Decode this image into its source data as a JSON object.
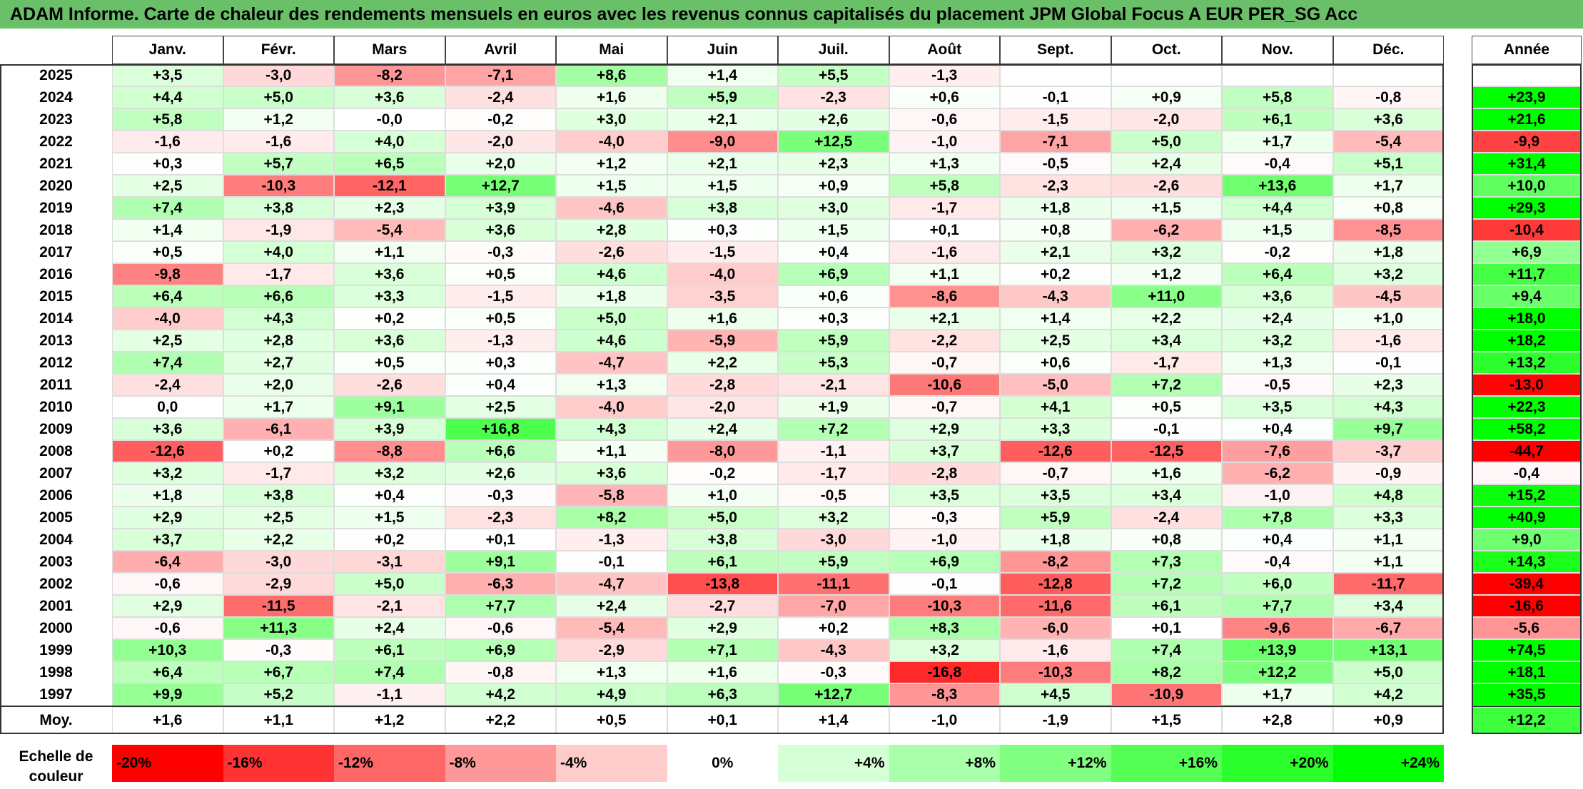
{
  "title": "ADAM Informe. Carte de chaleur des rendements mensuels en euros avec les revenus connus capitalisés du placement JPM Global Focus A EUR PER_SG Acc",
  "chart_data": {
    "type": "heatmap",
    "title": "ADAM Informe. Carte de chaleur des rendements mensuels en euros avec les revenus connus capitalisés du placement JPM Global Focus A EUR PER_SG Acc",
    "columns": [
      "Janv.",
      "Févr.",
      "Mars",
      "Avril",
      "Mai",
      "Juin",
      "Juil.",
      "Août",
      "Sept.",
      "Oct.",
      "Nov.",
      "Déc."
    ],
    "year_header": "Année",
    "rows": [
      {
        "label": "2025",
        "values": [
          "+3,5",
          "-3,0",
          "-8,2",
          "-7,1",
          "+8,6",
          "+1,4",
          "+5,5",
          "-1,3",
          "",
          "",
          "",
          ""
        ],
        "year": ""
      },
      {
        "label": "2024",
        "values": [
          "+4,4",
          "+5,0",
          "+3,6",
          "-2,4",
          "+1,6",
          "+5,9",
          "-2,3",
          "+0,6",
          "-0,1",
          "+0,9",
          "+5,8",
          "-0,8"
        ],
        "year": "+23,9"
      },
      {
        "label": "2023",
        "values": [
          "+5,8",
          "+1,2",
          "-0,0",
          "-0,2",
          "+3,0",
          "+2,1",
          "+2,6",
          "-0,6",
          "-1,5",
          "-2,0",
          "+6,1",
          "+3,6"
        ],
        "year": "+21,6"
      },
      {
        "label": "2022",
        "values": [
          "-1,6",
          "-1,6",
          "+4,0",
          "-2,0",
          "-4,0",
          "-9,0",
          "+12,5",
          "-1,0",
          "-7,1",
          "+5,0",
          "+1,7",
          "-5,4"
        ],
        "year": "-9,9"
      },
      {
        "label": "2021",
        "values": [
          "+0,3",
          "+5,7",
          "+6,5",
          "+2,0",
          "+1,2",
          "+2,1",
          "+2,3",
          "+1,3",
          "-0,5",
          "+2,4",
          "-0,4",
          "+5,1"
        ],
        "year": "+31,4"
      },
      {
        "label": "2020",
        "values": [
          "+2,5",
          "-10,3",
          "-12,1",
          "+12,7",
          "+1,5",
          "+1,5",
          "+0,9",
          "+5,8",
          "-2,3",
          "-2,6",
          "+13,6",
          "+1,7"
        ],
        "year": "+10,0"
      },
      {
        "label": "2019",
        "values": [
          "+7,4",
          "+3,8",
          "+2,3",
          "+3,9",
          "-4,6",
          "+3,8",
          "+3,0",
          "-1,7",
          "+1,8",
          "+1,5",
          "+4,4",
          "+0,8"
        ],
        "year": "+29,3"
      },
      {
        "label": "2018",
        "values": [
          "+1,4",
          "-1,9",
          "-5,4",
          "+3,6",
          "+2,8",
          "+0,3",
          "+1,5",
          "+0,1",
          "+0,8",
          "-6,2",
          "+1,5",
          "-8,5"
        ],
        "year": "-10,4"
      },
      {
        "label": "2017",
        "values": [
          "+0,5",
          "+4,0",
          "+1,1",
          "-0,3",
          "-2,6",
          "-1,5",
          "+0,4",
          "-1,6",
          "+2,1",
          "+3,2",
          "-0,2",
          "+1,8"
        ],
        "year": "+6,9"
      },
      {
        "label": "2016",
        "values": [
          "-9,8",
          "-1,7",
          "+3,6",
          "+0,5",
          "+4,6",
          "-4,0",
          "+6,9",
          "+1,1",
          "+0,2",
          "+1,2",
          "+6,4",
          "+3,2"
        ],
        "year": "+11,7"
      },
      {
        "label": "2015",
        "values": [
          "+6,4",
          "+6,6",
          "+3,3",
          "-1,5",
          "+1,8",
          "-3,5",
          "+0,6",
          "-8,6",
          "-4,3",
          "+11,0",
          "+3,6",
          "-4,5"
        ],
        "year": "+9,4"
      },
      {
        "label": "2014",
        "values": [
          "-4,0",
          "+4,3",
          "+0,2",
          "+0,5",
          "+5,0",
          "+1,6",
          "+0,3",
          "+2,1",
          "+1,4",
          "+2,2",
          "+2,4",
          "+1,0"
        ],
        "year": "+18,0"
      },
      {
        "label": "2013",
        "values": [
          "+2,5",
          "+2,8",
          "+3,6",
          "-1,3",
          "+4,6",
          "-5,9",
          "+5,9",
          "-2,2",
          "+2,5",
          "+3,4",
          "+3,2",
          "-1,6"
        ],
        "year": "+18,2"
      },
      {
        "label": "2012",
        "values": [
          "+7,4",
          "+2,7",
          "+0,5",
          "+0,3",
          "-4,7",
          "+2,2",
          "+5,3",
          "-0,7",
          "+0,6",
          "-1,7",
          "+1,3",
          "-0,1"
        ],
        "year": "+13,2"
      },
      {
        "label": "2011",
        "values": [
          "-2,4",
          "+2,0",
          "-2,6",
          "+0,4",
          "+1,3",
          "-2,8",
          "-2,1",
          "-10,6",
          "-5,0",
          "+7,2",
          "-0,5",
          "+2,3"
        ],
        "year": "-13,0"
      },
      {
        "label": "2010",
        "values": [
          "0,0",
          "+1,7",
          "+9,1",
          "+2,5",
          "-4,0",
          "-2,0",
          "+1,9",
          "-0,7",
          "+4,1",
          "+0,5",
          "+3,5",
          "+4,3"
        ],
        "year": "+22,3"
      },
      {
        "label": "2009",
        "values": [
          "+3,6",
          "-6,1",
          "+3,9",
          "+16,8",
          "+4,3",
          "+2,4",
          "+7,2",
          "+2,9",
          "+3,3",
          "-0,1",
          "+0,4",
          "+9,7"
        ],
        "year": "+58,2"
      },
      {
        "label": "2008",
        "values": [
          "-12,6",
          "+0,2",
          "-8,8",
          "+6,6",
          "+1,1",
          "-8,0",
          "-1,1",
          "+3,7",
          "-12,6",
          "-12,5",
          "-7,6",
          "-3,7"
        ],
        "year": "-44,7"
      },
      {
        "label": "2007",
        "values": [
          "+3,2",
          "-1,7",
          "+3,2",
          "+2,6",
          "+3,6",
          "-0,2",
          "-1,7",
          "-2,8",
          "-0,7",
          "+1,6",
          "-6,2",
          "-0,9"
        ],
        "year": "-0,4"
      },
      {
        "label": "2006",
        "values": [
          "+1,8",
          "+3,8",
          "+0,4",
          "-0,3",
          "-5,8",
          "+1,0",
          "-0,5",
          "+3,5",
          "+3,5",
          "+3,4",
          "-1,0",
          "+4,8"
        ],
        "year": "+15,2"
      },
      {
        "label": "2005",
        "values": [
          "+2,9",
          "+2,5",
          "+1,5",
          "-2,3",
          "+8,2",
          "+5,0",
          "+3,2",
          "-0,3",
          "+5,9",
          "-2,4",
          "+7,8",
          "+3,3"
        ],
        "year": "+40,9"
      },
      {
        "label": "2004",
        "values": [
          "+3,7",
          "+2,2",
          "+0,2",
          "+0,1",
          "-1,3",
          "+3,8",
          "-3,0",
          "-1,0",
          "+1,8",
          "+0,8",
          "+0,4",
          "+1,1"
        ],
        "year": "+9,0"
      },
      {
        "label": "2003",
        "values": [
          "-6,4",
          "-3,0",
          "-3,1",
          "+9,1",
          "-0,1",
          "+6,1",
          "+5,9",
          "+6,9",
          "-8,2",
          "+7,3",
          "-0,4",
          "+1,1"
        ],
        "year": "+14,3"
      },
      {
        "label": "2002",
        "values": [
          "-0,6",
          "-2,9",
          "+5,0",
          "-6,3",
          "-4,7",
          "-13,8",
          "-11,1",
          "-0,1",
          "-12,8",
          "+7,2",
          "+6,0",
          "-11,7"
        ],
        "year": "-39,4"
      },
      {
        "label": "2001",
        "values": [
          "+2,9",
          "-11,5",
          "-2,1",
          "+7,7",
          "+2,4",
          "-2,7",
          "-7,0",
          "-10,3",
          "-11,6",
          "+6,1",
          "+7,7",
          "+3,4"
        ],
        "year": "-16,6"
      },
      {
        "label": "2000",
        "values": [
          "-0,6",
          "+11,3",
          "+2,4",
          "-0,6",
          "-5,4",
          "+2,9",
          "+0,2",
          "+8,3",
          "-6,0",
          "+0,1",
          "-9,6",
          "-6,7"
        ],
        "year": "-5,6"
      },
      {
        "label": "1999",
        "values": [
          "+10,3",
          "-0,3",
          "+6,1",
          "+6,9",
          "-2,9",
          "+7,1",
          "-4,3",
          "+3,2",
          "-1,6",
          "+7,4",
          "+13,9",
          "+13,1"
        ],
        "year": "+74,5"
      },
      {
        "label": "1998",
        "values": [
          "+6,4",
          "+6,7",
          "+7,4",
          "-0,8",
          "+1,3",
          "+1,6",
          "-0,3",
          "-16,8",
          "-10,3",
          "+8,2",
          "+12,2",
          "+5,0"
        ],
        "year": "+18,1"
      },
      {
        "label": "1997",
        "values": [
          "+9,9",
          "+5,2",
          "-1,1",
          "+4,2",
          "+4,9",
          "+6,3",
          "+12,7",
          "-8,3",
          "+4,5",
          "-10,9",
          "+1,7",
          "+4,2"
        ],
        "year": "+35,5"
      }
    ],
    "average": {
      "label": "Moy.",
      "values": [
        "+1,6",
        "+1,1",
        "+1,2",
        "+2,2",
        "+0,5",
        "+0,1",
        "+1,4",
        "-1,0",
        "-1,9",
        "+1,5",
        "+2,8",
        "+0,9"
      ],
      "year": "+12,2"
    },
    "scale": {
      "label": "Echelle de couleur",
      "items": [
        "-20%",
        "-16%",
        "-12%",
        "-8%",
        "-4%",
        "0%",
        "+4%",
        "+8%",
        "+12%",
        "+16%",
        "+20%",
        "+24%"
      ],
      "stops": [
        -20,
        -16,
        -12,
        -8,
        -4,
        0,
        4,
        8,
        12,
        16,
        20,
        24
      ]
    },
    "colors": {
      "negative": "#ff0000",
      "positive": "#00ff00",
      "zero": "#ffffff",
      "title_bar": "#6abf69"
    }
  }
}
